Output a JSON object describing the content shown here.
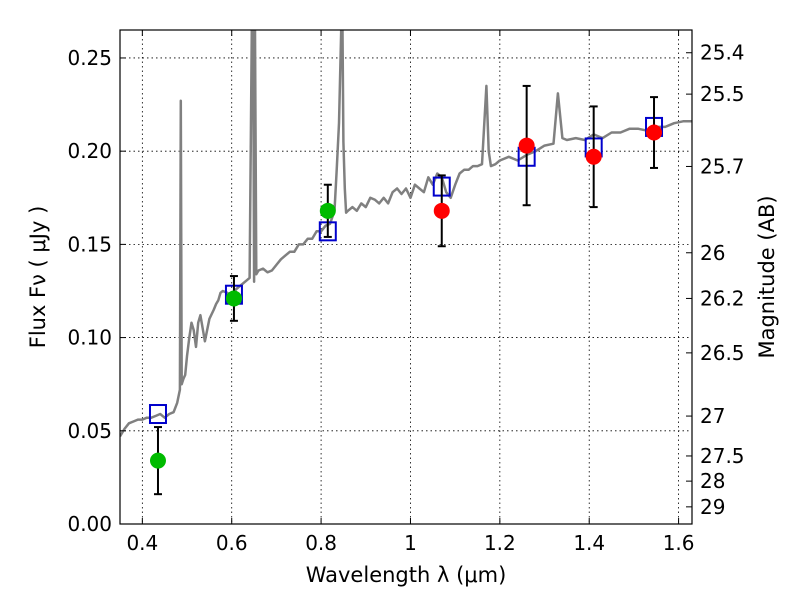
{
  "chart_data": {
    "type": "scatter",
    "title": "",
    "xlabel": "Wavelength  λ (μm)",
    "ylabel": "Flux  Fν ( μJy )",
    "ylabel_right": "Magnitude (AB)",
    "xlim": [
      0.35,
      1.63
    ],
    "ylim": [
      0.0,
      0.265
    ],
    "grid": true,
    "x_ticks": [
      0.4,
      0.6,
      0.8,
      1.0,
      1.2,
      1.4,
      1.6
    ],
    "x_tick_labels": [
      "0.4",
      "0.6",
      "0.8",
      "1",
      "1.2",
      "1.4",
      "1.6"
    ],
    "y_ticks": [
      0.0,
      0.05,
      0.1,
      0.15,
      0.2,
      0.25
    ],
    "y_tick_labels": [
      "0.00",
      "0.05",
      "0.10",
      "0.15",
      "0.20",
      "0.25"
    ],
    "right_ticks": [
      {
        "label": "25.4",
        "flux": 0.2528
      },
      {
        "label": "25.5",
        "flux": 0.2306
      },
      {
        "label": "25.7",
        "flux": 0.1918
      },
      {
        "label": "26",
        "flux": 0.1455
      },
      {
        "label": "26.2",
        "flux": 0.121
      },
      {
        "label": "26.5",
        "flux": 0.0918
      },
      {
        "label": "27",
        "flux": 0.0579
      },
      {
        "label": "27.5",
        "flux": 0.0365
      },
      {
        "label": "28",
        "flux": 0.023
      },
      {
        "label": "29",
        "flux": 0.0092
      }
    ],
    "series": [
      {
        "name": "model spectrum",
        "type": "line",
        "color": "#808080",
        "x": [
          0.35,
          0.36,
          0.37,
          0.38,
          0.39,
          0.4,
          0.41,
          0.42,
          0.43,
          0.44,
          0.45,
          0.46,
          0.47,
          0.478,
          0.484,
          0.486,
          0.488,
          0.492,
          0.496,
          0.5,
          0.505,
          0.51,
          0.515,
          0.52,
          0.525,
          0.53,
          0.54,
          0.55,
          0.56,
          0.565,
          0.57,
          0.575,
          0.58,
          0.59,
          0.6,
          0.61,
          0.62,
          0.63,
          0.64,
          0.645,
          0.648,
          0.65,
          0.652,
          0.655,
          0.66,
          0.67,
          0.68,
          0.69,
          0.7,
          0.71,
          0.72,
          0.73,
          0.74,
          0.75,
          0.76,
          0.77,
          0.78,
          0.79,
          0.8,
          0.81,
          0.82,
          0.83,
          0.835,
          0.84,
          0.845,
          0.848,
          0.85,
          0.853,
          0.856,
          0.86,
          0.87,
          0.88,
          0.89,
          0.9,
          0.91,
          0.92,
          0.93,
          0.94,
          0.95,
          0.96,
          0.97,
          0.98,
          0.99,
          1.0,
          1.01,
          1.02,
          1.03,
          1.04,
          1.05,
          1.06,
          1.07,
          1.08,
          1.09,
          1.1,
          1.11,
          1.12,
          1.13,
          1.14,
          1.15,
          1.16,
          1.17,
          1.175,
          1.18,
          1.19,
          1.2,
          1.22,
          1.24,
          1.26,
          1.28,
          1.3,
          1.32,
          1.33,
          1.34,
          1.35,
          1.37,
          1.39,
          1.41,
          1.43,
          1.45,
          1.47,
          1.49,
          1.51,
          1.53,
          1.55,
          1.57,
          1.59,
          1.61,
          1.63
        ],
        "y": [
          0.047,
          0.051,
          0.054,
          0.055,
          0.056,
          0.056,
          0.057,
          0.057,
          0.058,
          0.059,
          0.057,
          0.059,
          0.06,
          0.065,
          0.072,
          0.227,
          0.075,
          0.078,
          0.08,
          0.09,
          0.1,
          0.108,
          0.104,
          0.095,
          0.108,
          0.112,
          0.098,
          0.11,
          0.115,
          0.118,
          0.12,
          0.124,
          0.125,
          0.124,
          0.122,
          0.126,
          0.128,
          0.13,
          0.132,
          0.265,
          0.265,
          0.13,
          0.265,
          0.134,
          0.136,
          0.137,
          0.135,
          0.136,
          0.139,
          0.142,
          0.144,
          0.146,
          0.146,
          0.15,
          0.15,
          0.153,
          0.153,
          0.157,
          0.157,
          0.16,
          0.161,
          0.168,
          0.19,
          0.215,
          0.265,
          0.265,
          0.205,
          0.18,
          0.167,
          0.168,
          0.17,
          0.168,
          0.172,
          0.17,
          0.175,
          0.174,
          0.172,
          0.175,
          0.172,
          0.178,
          0.18,
          0.177,
          0.18,
          0.175,
          0.182,
          0.18,
          0.178,
          0.186,
          0.182,
          0.188,
          0.186,
          0.178,
          0.175,
          0.182,
          0.188,
          0.19,
          0.19,
          0.192,
          0.192,
          0.193,
          0.235,
          0.2,
          0.192,
          0.193,
          0.195,
          0.197,
          0.195,
          0.198,
          0.2,
          0.203,
          0.204,
          0.231,
          0.207,
          0.206,
          0.207,
          0.206,
          0.209,
          0.207,
          0.21,
          0.21,
          0.212,
          0.212,
          0.211,
          0.213,
          0.213,
          0.215,
          0.216,
          0.216
        ]
      },
      {
        "name": "synthetic photometry",
        "type": "scatter",
        "marker": "open-square",
        "color": "#0000cc",
        "x": [
          0.435,
          0.605,
          0.815,
          1.07,
          1.26,
          1.41,
          1.545
        ],
        "y": [
          0.059,
          0.123,
          0.157,
          0.181,
          0.197,
          0.202,
          0.213
        ]
      },
      {
        "name": "observed photometry (green)",
        "type": "scatter",
        "marker": "filled-circle",
        "color": "#00bb00",
        "x": [
          0.435,
          0.605,
          0.815
        ],
        "y": [
          0.034,
          0.121,
          0.168
        ],
        "yerr": [
          0.018,
          0.012,
          0.014
        ]
      },
      {
        "name": "observed photometry (red)",
        "type": "scatter",
        "marker": "filled-circle",
        "color": "#ff0000",
        "x": [
          1.07,
          1.26,
          1.41,
          1.545
        ],
        "y": [
          0.168,
          0.203,
          0.197,
          0.21
        ],
        "yerr": [
          0.019,
          0.032,
          0.027,
          0.019
        ]
      }
    ]
  }
}
